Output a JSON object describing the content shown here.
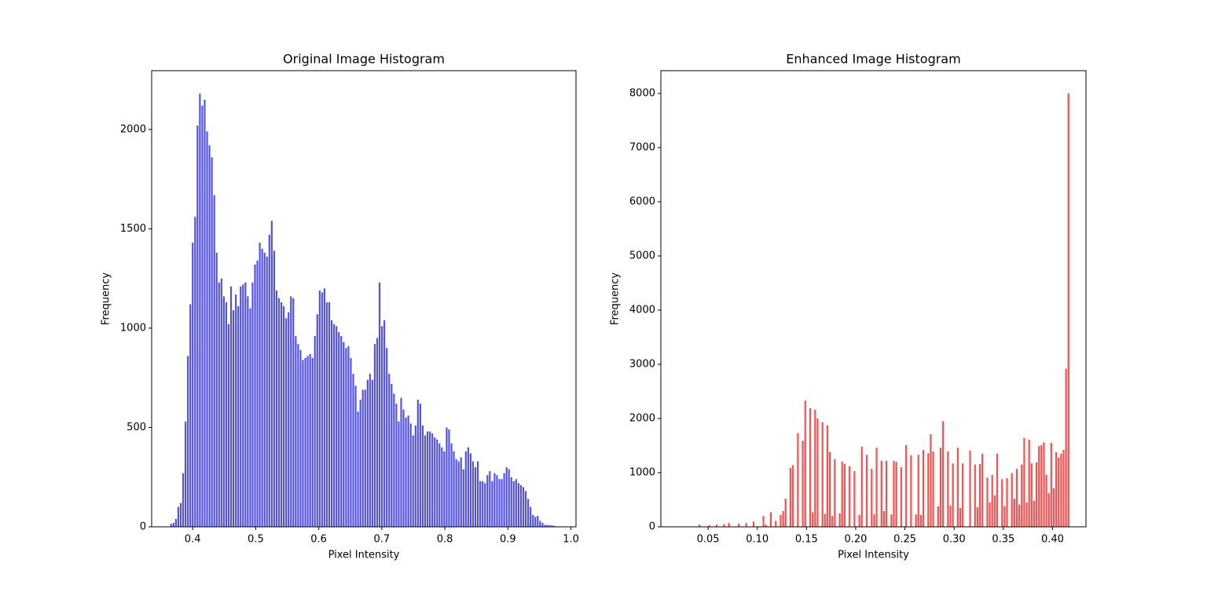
{
  "chart_data": [
    {
      "type": "histogram",
      "title": "Original Image Histogram",
      "xlabel": "Pixel Intensity",
      "ylabel": "Frequency",
      "color": "#4d4dff",
      "bins": [
        0.364,
        0.3678,
        0.3716,
        0.3754,
        0.3792,
        0.383,
        0.3868,
        0.3906,
        0.3944,
        0.3982,
        0.402,
        0.4058,
        0.4096,
        0.4134,
        0.4172,
        0.421,
        0.4248,
        0.4286,
        0.4324,
        0.4362,
        0.44,
        0.4438,
        0.4476,
        0.4514,
        0.4552,
        0.459,
        0.4628,
        0.4666,
        0.4704,
        0.4742,
        0.478,
        0.4818,
        0.4856,
        0.4894,
        0.4932,
        0.497,
        0.5008,
        0.5046,
        0.5084,
        0.5122,
        0.516,
        0.5198,
        0.5236,
        0.5274,
        0.5312,
        0.535,
        0.5388,
        0.5426,
        0.5464,
        0.5502,
        0.554,
        0.5578,
        0.5616,
        0.5654,
        0.5692,
        0.573,
        0.5768,
        0.5806,
        0.5844,
        0.5882,
        0.592,
        0.5958,
        0.5996,
        0.6034,
        0.6072,
        0.611,
        0.6148,
        0.6186,
        0.6224,
        0.6262,
        0.63,
        0.6338,
        0.6376,
        0.6414,
        0.6452,
        0.649,
        0.6528,
        0.6566,
        0.6604,
        0.6642,
        0.668,
        0.6718,
        0.6756,
        0.6794,
        0.6832,
        0.687,
        0.6908,
        0.6946,
        0.6984,
        0.7022,
        0.706,
        0.7098,
        0.7136,
        0.7174,
        0.7212,
        0.725,
        0.7288,
        0.7326,
        0.7364,
        0.7402,
        0.744,
        0.7478,
        0.7516,
        0.7554,
        0.7592,
        0.763,
        0.7668,
        0.7706,
        0.7744,
        0.7782,
        0.782,
        0.7858,
        0.7896,
        0.7934,
        0.7972,
        0.801,
        0.8048,
        0.8086,
        0.8124,
        0.8162,
        0.82,
        0.8238,
        0.8276,
        0.8314,
        0.8352,
        0.839,
        0.8428,
        0.8466,
        0.8504,
        0.8542,
        0.858,
        0.8618,
        0.8656,
        0.8694,
        0.8732,
        0.877,
        0.8808,
        0.8846,
        0.8884,
        0.8922,
        0.896,
        0.8998,
        0.9036,
        0.9074,
        0.9112,
        0.915,
        0.9188,
        0.9226,
        0.9264,
        0.9302,
        0.934,
        0.9378,
        0.9416,
        0.9454,
        0.9492,
        0.953,
        0.9568,
        0.9606,
        0.9644,
        0.9682,
        0.972,
        0.9758
      ],
      "counts": [
        15,
        20,
        40,
        100,
        120,
        270,
        530,
        860,
        1120,
        1430,
        1560,
        2020,
        2180,
        2120,
        2150,
        1990,
        1920,
        1860,
        1670,
        1380,
        1230,
        1250,
        1160,
        1130,
        1020,
        1210,
        1090,
        1170,
        1110,
        1210,
        1220,
        1230,
        1160,
        1100,
        1230,
        1320,
        1340,
        1430,
        1400,
        1380,
        1360,
        1470,
        1540,
        1390,
        1190,
        1150,
        1130,
        1110,
        1050,
        1080,
        1160,
        1150,
        960,
        920,
        890,
        840,
        850,
        860,
        870,
        850,
        960,
        1070,
        1190,
        1180,
        1200,
        1130,
        1130,
        1040,
        1020,
        1010,
        980,
        960,
        930,
        900,
        910,
        850,
        770,
        710,
        580,
        640,
        690,
        690,
        740,
        770,
        740,
        920,
        950,
        1230,
        1010,
        1040,
        900,
        770,
        720,
        670,
        620,
        530,
        650,
        590,
        550,
        560,
        520,
        460,
        510,
        640,
        620,
        510,
        460,
        480,
        480,
        470,
        450,
        440,
        420,
        400,
        380,
        500,
        490,
        420,
        380,
        340,
        330,
        350,
        290,
        380,
        400,
        370,
        330,
        300,
        330,
        230,
        230,
        220,
        260,
        280,
        230,
        270,
        260,
        240,
        240,
        270,
        300,
        290,
        250,
        230,
        240,
        220,
        210,
        200,
        180,
        140,
        100,
        60,
        50,
        55,
        30,
        20,
        10,
        10,
        8,
        8,
        5
      ],
      "xlim": [
        0.335,
        1.008
      ],
      "ylim": [
        0,
        2296
      ],
      "xticks": [
        0.4,
        0.5,
        0.6,
        0.7,
        0.8,
        0.9,
        {
          "value": 1,
          "label": "1.0"
        }
      ],
      "yticks": [
        0,
        500,
        1000,
        1500,
        2000
      ]
    },
    {
      "type": "histogram",
      "title": "Enhanced Image Histogram",
      "xlabel": "Pixel Intensity",
      "ylabel": "Frequency",
      "color": "#ff4d4d",
      "bins": [
        0.04,
        0.0425,
        0.045,
        0.0475,
        0.05,
        0.0525,
        0.055,
        0.0575,
        0.06,
        0.0625,
        0.065,
        0.0675,
        0.07,
        0.0725,
        0.075,
        0.0775,
        0.08,
        0.0825,
        0.085,
        0.0875,
        0.09,
        0.0925,
        0.095,
        0.0975,
        0.1,
        0.1025,
        0.105,
        0.1075,
        0.11,
        0.1125,
        0.115,
        0.1175,
        0.12,
        0.1225,
        0.125,
        0.1275,
        0.13,
        0.1325,
        0.135,
        0.1375,
        0.14,
        0.1425,
        0.145,
        0.1475,
        0.15,
        0.1525,
        0.155,
        0.1575,
        0.16,
        0.1625,
        0.165,
        0.1675,
        0.17,
        0.1725,
        0.175,
        0.1775,
        0.18,
        0.1825,
        0.185,
        0.1875,
        0.19,
        0.1925,
        0.195,
        0.1975,
        0.2,
        0.2025,
        0.205,
        0.2075,
        0.21,
        0.2125,
        0.215,
        0.2175,
        0.22,
        0.2225,
        0.225,
        0.2275,
        0.23,
        0.2325,
        0.235,
        0.2375,
        0.24,
        0.2425,
        0.245,
        0.2475,
        0.25,
        0.2525,
        0.255,
        0.2575,
        0.26,
        0.2625,
        0.265,
        0.2675,
        0.27,
        0.2725,
        0.275,
        0.2775,
        0.28,
        0.2825,
        0.285,
        0.2875,
        0.29,
        0.2925,
        0.295,
        0.2975,
        0.3,
        0.3025,
        0.305,
        0.3075,
        0.31,
        0.3125,
        0.315,
        0.3175,
        0.32,
        0.3225,
        0.325,
        0.3275,
        0.33,
        0.3325,
        0.335,
        0.3375,
        0.34,
        0.3425,
        0.345,
        0.3475,
        0.35,
        0.3525,
        0.355,
        0.3575,
        0.36,
        0.3625,
        0.365,
        0.3675,
        0.37,
        0.3725,
        0.375,
        0.3775,
        0.38,
        0.3825,
        0.385,
        0.3875,
        0.39,
        0.3925,
        0.395,
        0.3975,
        0.4,
        0.4025,
        0.405,
        0.4075,
        0.41,
        0.4125,
        0.415,
        0.4175
      ],
      "counts": [
        40,
        0,
        0,
        0,
        30,
        0,
        0,
        40,
        0,
        0,
        50,
        0,
        70,
        0,
        0,
        0,
        60,
        0,
        0,
        70,
        0,
        0,
        100,
        0,
        0,
        0,
        200,
        40,
        0,
        270,
        0,
        110,
        0,
        220,
        290,
        520,
        0,
        1090,
        1140,
        0,
        1730,
        0,
        1590,
        2330,
        0,
        2190,
        270,
        2160,
        2000,
        0,
        1930,
        240,
        1870,
        1380,
        200,
        1250,
        0,
        250,
        1200,
        1160,
        0,
        1120,
        0,
        1030,
        0,
        220,
        1480,
        0,
        1330,
        0,
        1070,
        230,
        1460,
        0,
        1220,
        290,
        1220,
        0,
        230,
        1220,
        1200,
        0,
        1100,
        0,
        1510,
        0,
        1320,
        0,
        230,
        1330,
        220,
        1420,
        0,
        1360,
        1710,
        1390,
        0,
        380,
        1460,
        1950,
        0,
        1390,
        390,
        1170,
        0,
        1460,
        350,
        1170,
        0,
        0,
        1410,
        0,
        1150,
        360,
        1160,
        1350,
        0,
        910,
        450,
        960,
        580,
        1350,
        0,
        880,
        380,
        900,
        0,
        990,
        520,
        1070,
        410,
        1150,
        1640,
        450,
        1610,
        1170,
        480,
        1190,
        1490,
        1510,
        1560,
        960,
        620,
        1550,
        710,
        1380,
        1280,
        1350,
        1420,
        2920,
        8000
      ],
      "xlim": [
        0.002,
        0.434
      ],
      "ylim": [
        0,
        8420
      ],
      "xticks": [
        0.05,
        {
          "value": 0.1,
          "label": "0.10"
        },
        0.15,
        {
          "value": 0.2,
          "label": "0.20"
        },
        0.25,
        {
          "value": 0.3,
          "label": "0.30"
        },
        0.35,
        {
          "value": 0.4,
          "label": "0.40"
        }
      ],
      "yticks": [
        0,
        1000,
        2000,
        3000,
        4000,
        5000,
        6000,
        7000,
        8000
      ]
    }
  ]
}
